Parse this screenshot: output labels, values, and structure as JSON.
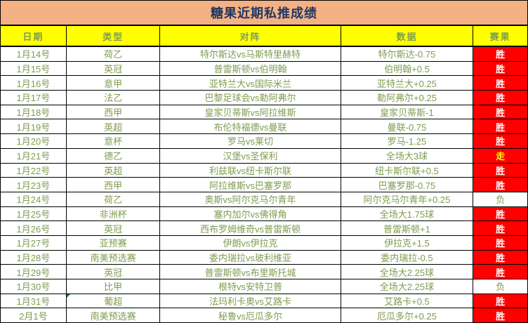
{
  "title": "糖果近期私推成绩",
  "colors": {
    "title_bg": "#F4B183",
    "header_bg": "#FFFF00",
    "header_text": "#1F3864",
    "data_text": "#7E9C50",
    "win_bg": "#FF0000",
    "win_text": "#FFFFFF",
    "push_text": "#FFFF00",
    "grid": "#000000",
    "corner_marker": "#1E7145"
  },
  "table": {
    "headers": [
      "日期",
      "类型",
      "对阵",
      "数据",
      "赛果"
    ],
    "rows": [
      {
        "date": "1月14号",
        "type": "荷乙",
        "match": "特尔斯达vs马斯特里赫特",
        "data": "特尔斯达-0.75",
        "result": "胜",
        "result_style": "win"
      },
      {
        "date": "1月15号",
        "type": "英冠",
        "match": "普雷斯顿vs伯明翰",
        "data": "伯明翰+0.5",
        "result": "胜",
        "result_style": "win"
      },
      {
        "date": "1月16号",
        "type": "意甲",
        "match": "亚特兰大vs国际米兰",
        "data": "亚特兰大+0.25",
        "result": "胜",
        "result_style": "win"
      },
      {
        "date": "1月17号",
        "type": "法乙",
        "match": "巴黎足球会vs勒阿弗尔",
        "data": "勒阿弗尔+0.25",
        "result": "胜",
        "result_style": "win"
      },
      {
        "date": "1月18号",
        "type": "西甲",
        "match": "皇家贝蒂斯vs阿拉维斯",
        "data": "皇家贝蒂斯-1",
        "result": "胜",
        "result_style": "win"
      },
      {
        "date": "1月19号",
        "type": "英超",
        "match": "布伦特福德vs曼联",
        "data": "曼联-0.75",
        "result": "胜",
        "result_style": "win"
      },
      {
        "date": "1月20号",
        "type": "意杯",
        "match": "罗马vs莱切",
        "data": "罗马-1.25",
        "result": "胜",
        "result_style": "win"
      },
      {
        "date": "1月21号",
        "type": "德乙",
        "match": "汉堡vs圣保利",
        "data": "全场大3球",
        "result": "走",
        "result_style": "push"
      },
      {
        "date": "1月22号",
        "type": "英超",
        "match": "利兹联vs纽卡斯尔联",
        "data": "纽卡斯尔联+0.5",
        "result": "胜",
        "result_style": "win"
      },
      {
        "date": "1月23号",
        "type": "西甲",
        "match": "阿拉维斯vs巴塞罗那",
        "data": "巴塞罗那-0.75",
        "result": "胜",
        "result_style": "win"
      },
      {
        "date": "1月24号",
        "type": "荷乙",
        "match": "奥斯vs阿尔克马尔青年",
        "data": "阿尔克马尔青年+0.25",
        "result": "负",
        "result_style": "loss"
      },
      {
        "date": "1月25号",
        "type": "非洲杯",
        "match": "塞内加尔vs佛得角",
        "data": "全场大1.75球",
        "result": "胜",
        "result_style": "win"
      },
      {
        "date": "1月26号",
        "type": "英冠",
        "match": "西布罗姆维奇vs普雷斯顿",
        "data": "普雷斯顿+1",
        "result": "胜",
        "result_style": "win"
      },
      {
        "date": "1月27号",
        "type": "亚预赛",
        "match": "伊朗vs伊拉克",
        "data": "伊拉克+1.5",
        "result": "胜",
        "result_style": "win"
      },
      {
        "date": "1月28号",
        "type": "南美预选赛",
        "match": "委内瑞拉vs玻利维亚",
        "data": "委内瑞拉-0.5",
        "result": "胜",
        "result_style": "win"
      },
      {
        "date": "1月29号",
        "type": "英冠",
        "match": "普雷斯顿vs布里斯托城",
        "data": "全场大2.25球",
        "result": "胜",
        "result_style": "win"
      },
      {
        "date": "1月30号",
        "type": "比甲",
        "match": "根特vs安特卫普",
        "data": "全场大2.25球",
        "result": "负",
        "result_style": "loss"
      },
      {
        "date": "1月31号",
        "type": "葡超",
        "match": "法玛利卡奥vs艾路卡",
        "data": "艾路卡+0.5",
        "result": "胜",
        "result_style": "win",
        "marker": true
      },
      {
        "date": "2月1号",
        "type": "南美预选赛",
        "match": "秘鲁vs厄瓜多尔",
        "data": "厄瓜多尔+0.25",
        "result": "胜",
        "result_style": "win"
      }
    ]
  }
}
